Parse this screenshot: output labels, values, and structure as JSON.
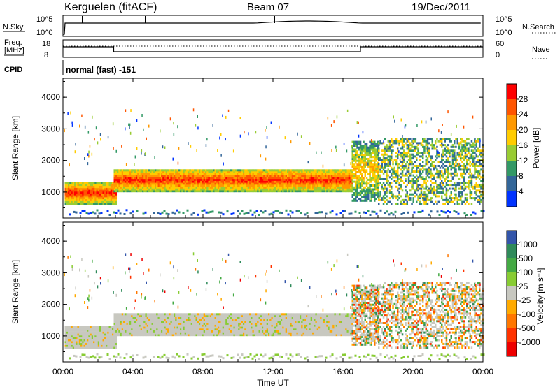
{
  "header": {
    "station": "Kerguelen (fitACF)",
    "beam": "Beam 07",
    "date": "19/Dec/2011"
  },
  "sky_panel": {
    "left_label": "N.Sky",
    "left_ticks": [
      "10^5",
      "10^0"
    ],
    "right_label": "N.Search",
    "right_ticks": [
      "10^5",
      "10^0"
    ]
  },
  "freq_panel": {
    "left_label_1": "Freq.",
    "left_label_2": "[MHz]",
    "left_ticks": [
      "18",
      "8"
    ],
    "right_label": "Nave",
    "right_ticks": [
      "60",
      "0"
    ]
  },
  "cpid": {
    "label": "CPID",
    "value": "normal (fast) -151"
  },
  "colorbars": {
    "power": {
      "title": "Power [dB]",
      "ticks": [
        "28",
        "24",
        "20",
        "16",
        "12",
        "8",
        "4"
      ],
      "colors": [
        "#ff0000",
        "#ff5500",
        "#ff9900",
        "#ffcc00",
        "#99cc33",
        "#339966",
        "#336699",
        "#0033ff"
      ]
    },
    "velocity": {
      "title": "Velocity [m s⁻¹]",
      "ticks": [
        "1000",
        "500",
        "100",
        "25",
        "-25",
        "-100",
        "-500",
        "-1000"
      ],
      "colors": [
        "#3355aa",
        "#2f8a5a",
        "#44aa44",
        "#88cc33",
        "#c8c8c0",
        "#ffaa00",
        "#ff7700",
        "#ff3300",
        "#ee0000"
      ]
    }
  },
  "chart_data": {
    "type": "heatmap",
    "xlabel": "Time UT",
    "x_ticks": [
      "00:00",
      "04:00",
      "08:00",
      "12:00",
      "16:00",
      "20:00",
      "00:00"
    ],
    "x_range_hours": [
      0,
      24
    ],
    "ylabel": "Slant Range [km]",
    "y_ticks": [
      "4000",
      "3000",
      "2000",
      "1000"
    ],
    "ylim_km": [
      180,
      4600
    ],
    "power_bands": [
      {
        "t0": 0.1,
        "t1": 3.0,
        "r0": 600,
        "r1": 1300,
        "level": "high"
      },
      {
        "t0": 2.9,
        "t1": 16.5,
        "r0": 1000,
        "r1": 1700,
        "level": "high"
      },
      {
        "t0": 16.5,
        "t1": 18.0,
        "r0": 700,
        "r1": 2600,
        "level": "medium"
      },
      {
        "t0": 18.0,
        "t1": 24.0,
        "r0": 600,
        "r1": 2700,
        "level": "low"
      }
    ],
    "nsky_search_max_time_h": 17.0,
    "freq_switch_times_h": [
      2.9,
      17.0
    ]
  }
}
